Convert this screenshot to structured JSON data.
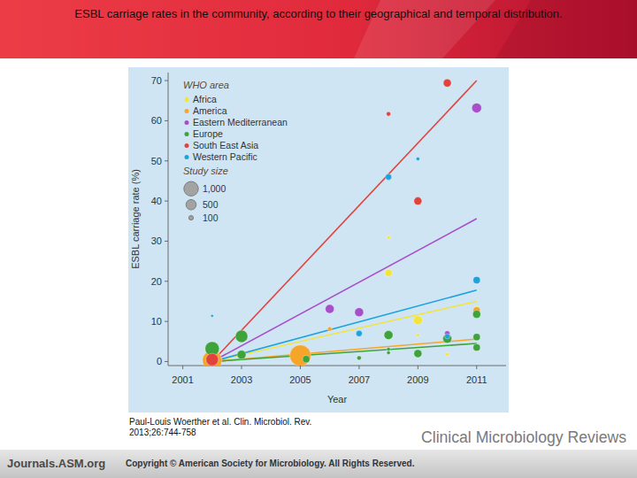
{
  "chart_data": {
    "type": "scatter",
    "title": "ESBL carriage rates in the community, according to their geographical and temporal distribution.",
    "x_label": "Year",
    "y_label": "ESBL carriage rate (%)",
    "xlim": [
      2000.5,
      2012
    ],
    "xticks": [
      2001,
      2003,
      2005,
      2007,
      2009,
      2011
    ],
    "ylim": [
      -1,
      72
    ],
    "yticks": [
      0,
      10,
      20,
      30,
      40,
      50,
      60,
      70
    ],
    "grid": false,
    "legend": "upper left",
    "legend_title": "WHO area",
    "marker": "circle",
    "line_style": "solid",
    "size_legend_title": "Study size",
    "size_legend": [
      {
        "value": 1000,
        "label": "1,000"
      },
      {
        "value": 500,
        "label": "500"
      },
      {
        "value": 100,
        "label": "100"
      }
    ],
    "series": [
      {
        "name": "Africa",
        "color": "#f2e43a",
        "x": [
          2008,
          2008,
          2009,
          2009,
          2010,
          2011
        ],
        "values": [
          30.9,
          22.1,
          10.3,
          6.6,
          1.8,
          13.2
        ],
        "sizes": [
          60,
          240,
          370,
          60,
          60,
          130
        ],
        "trend_x": [
          2002,
          2011
        ],
        "trend_values": [
          0,
          15
        ]
      },
      {
        "name": "America",
        "color": "#f5a52a",
        "x": [
          2002,
          2005,
          2006,
          2011
        ],
        "values": [
          0.3,
          1.5,
          8.1,
          12.7
        ],
        "sizes": [
          1800,
          2100,
          90,
          240
        ],
        "trend_x": [
          2002,
          2011
        ],
        "trend_values": [
          0,
          5.6
        ]
      },
      {
        "name": "Eastern Mediterranean",
        "color": "#a64fc9",
        "x": [
          2006,
          2007,
          2010,
          2011
        ],
        "values": [
          13.1,
          12.3,
          7.0,
          63.2
        ],
        "sizes": [
          370,
          370,
          130,
          450
        ],
        "trend_x": [
          2002,
          2011
        ],
        "trend_values": [
          0,
          35.6
        ]
      },
      {
        "name": "Europe",
        "color": "#3ea33a",
        "x": [
          2002,
          2003,
          2003,
          2005.2,
          2007,
          2008,
          2008,
          2008,
          2009,
          2010,
          2011,
          2011,
          2011
        ],
        "values": [
          3.2,
          6.3,
          1.7,
          0.6,
          0.9,
          6.6,
          3.1,
          2.2,
          2.0,
          5.7,
          11.8,
          6.1,
          3.5
        ],
        "sizes": [
          950,
          725,
          370,
          240,
          90,
          370,
          60,
          60,
          300,
          370,
          300,
          240,
          240
        ],
        "trend_x": [
          2002,
          2011
        ],
        "trend_values": [
          0,
          4.5
        ]
      },
      {
        "name": "South East Asia",
        "color": "#e2423c",
        "x": [
          2002,
          2008,
          2009,
          2010
        ],
        "values": [
          0.5,
          61.7,
          40,
          69.4
        ],
        "sizes": [
          725,
          90,
          300,
          300
        ],
        "trend_x": [
          2002,
          2011
        ],
        "trend_values": [
          0,
          70
        ]
      },
      {
        "name": "Western Pacific",
        "color": "#1ba3dd",
        "x": [
          2002,
          2007,
          2008,
          2009,
          2010,
          2011
        ],
        "values": [
          11.4,
          7.0,
          46,
          50.5,
          6.3,
          20.3
        ],
        "sizes": [
          35,
          180,
          180,
          60,
          130,
          240
        ],
        "trend_x": [
          2002,
          2011
        ],
        "trend_values": [
          0,
          17.8
        ]
      }
    ]
  },
  "slide": {
    "citation_lines": [
      "Paul-Louis Woerther et al. Clin. Microbiol. Rev.",
      "2013;26:744-758"
    ],
    "journal": "Clinical Microbiology Reviews",
    "footer_site": "Journals.ASM.org",
    "footer_copyright": "Copyright © American Society for Microbiology. All Rights Reserved."
  }
}
